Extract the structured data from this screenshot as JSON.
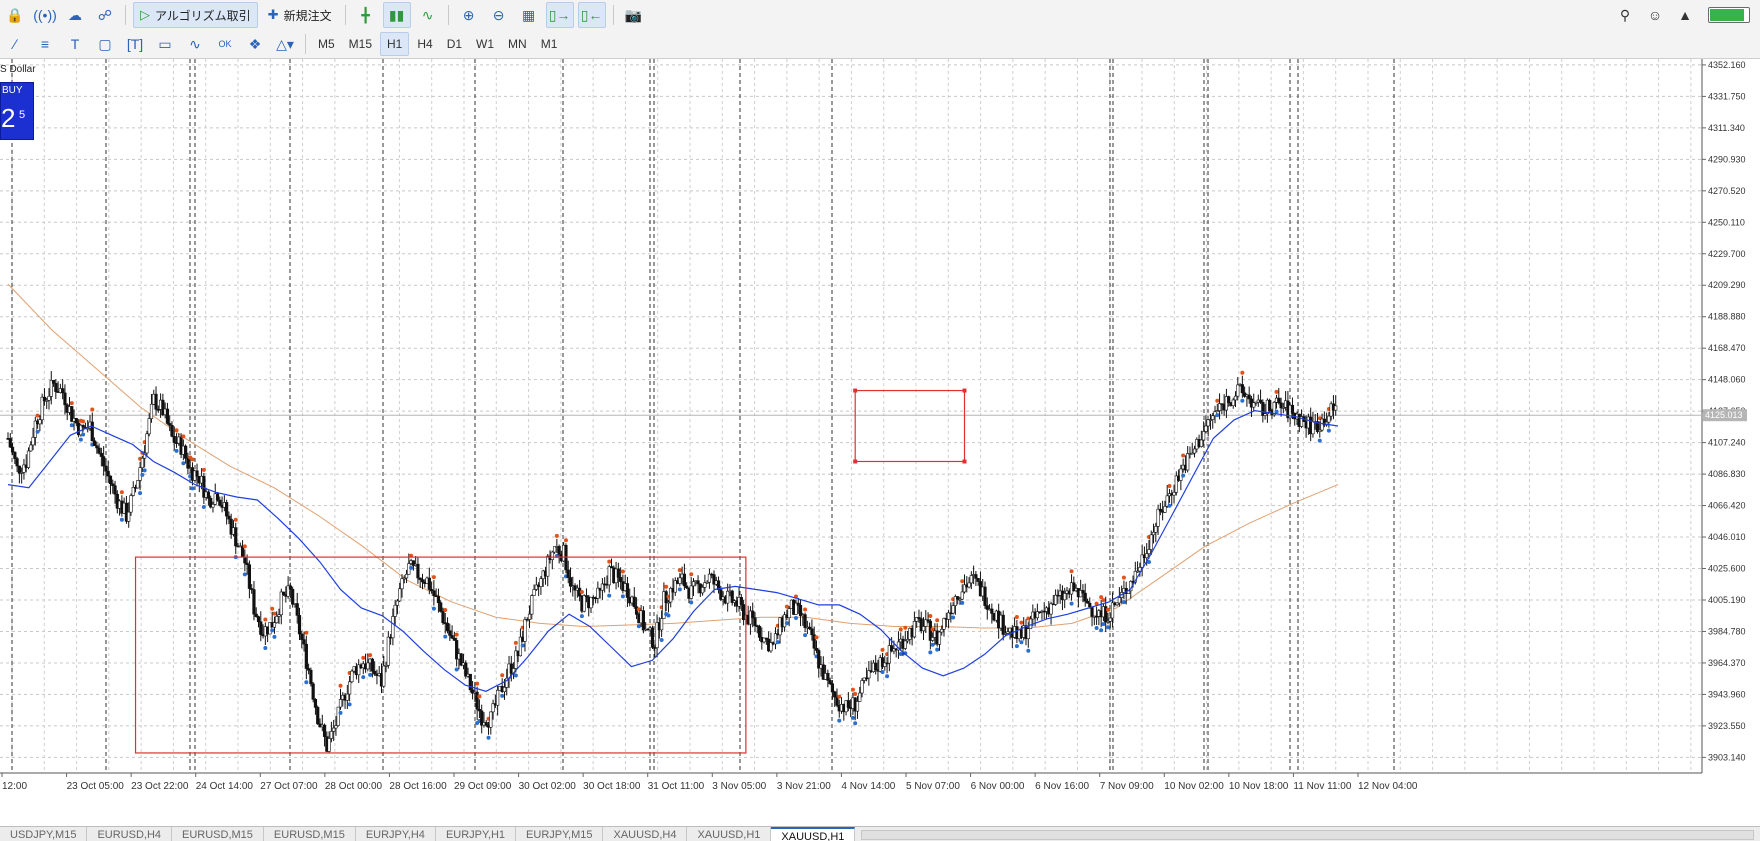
{
  "toolbar": {
    "algo_label": "アルゴリズム取引",
    "new_order_label": "新規注文",
    "icons_left": [
      "lock-icon",
      "signal-icon",
      "cloud-icon",
      "cloud-add-icon"
    ],
    "icons_chart": [
      "bar-chart-icon",
      "candlestick-icon",
      "line-chart-icon"
    ],
    "icons_zoom": [
      "zoom-in-icon",
      "zoom-out-icon",
      "grid-icon",
      "auto-scroll-icon",
      "chart-shift-icon"
    ],
    "screenshot_icon": "camera-icon",
    "right_icons": [
      "search-icon",
      "user-icon",
      "signal-strength-icon"
    ],
    "battery_level": 0.85
  },
  "drawing_toolbar": {
    "tools": [
      "line-tool-icon",
      "hlines-icon",
      "text-tool-icon",
      "rectangle-tool-icon",
      "text-label-icon",
      "price-label-icon",
      "indicator-icon",
      "ok-button-icon",
      "object-icon",
      "shapes-menu-icon"
    ],
    "timeframes": [
      "M5",
      "M15",
      "H1",
      "H4",
      "D1",
      "W1",
      "MN",
      "M1"
    ],
    "active_timeframe": "H1"
  },
  "trade_panel": {
    "symbol": "S Dollar",
    "buy_label": "BUY",
    "price_main": "2",
    "price_sup": "5"
  },
  "chart_data": {
    "type": "candlestick",
    "symbol": "XAUUSD",
    "timeframe": "H1",
    "y_ticks": [
      "4352.160",
      "4331.750",
      "4311.340",
      "4290.930",
      "4270.520",
      "4250.110",
      "4229.700",
      "4209.290",
      "4188.880",
      "4168.470",
      "4148.060",
      "4127.650",
      "4107.240",
      "4086.830",
      "4066.420",
      "4046.010",
      "4025.600",
      "4005.190",
      "3984.780",
      "3964.370",
      "3943.960",
      "3923.550",
      "3903.140"
    ],
    "ylim": [
      3893.0,
      4356.0
    ],
    "current_price": "4125.013",
    "x_labels": [
      "12:00",
      "23 Oct 05:00",
      "23 Oct 22:00",
      "24 Oct 14:00",
      "27 Oct 07:00",
      "28 Oct 00:00",
      "28 Oct 16:00",
      "29 Oct 09:00",
      "30 Oct 02:00",
      "30 Oct 18:00",
      "31 Oct 11:00",
      "3 Nov 05:00",
      "3 Nov 21:00",
      "4 Nov 14:00",
      "5 Nov 07:00",
      "6 Nov 00:00",
      "6 Nov 16:00",
      "7 Nov 09:00",
      "10 Nov 02:00",
      "10 Nov 18:00",
      "11 Nov 11:00",
      "12 Nov 04:00"
    ],
    "price_path": [
      4110,
      4090,
      4095,
      4120,
      4135,
      4145,
      4140,
      4125,
      4115,
      4118,
      4100,
      4085,
      4070,
      4060,
      4078,
      4105,
      4135,
      4128,
      4110,
      4105,
      4090,
      4085,
      4070,
      4075,
      4060,
      4045,
      4030,
      4000,
      3985,
      3990,
      4005,
      4010,
      3985,
      3960,
      3930,
      3910,
      3925,
      3945,
      3960,
      3965,
      3960,
      3952,
      3985,
      4010,
      4026,
      4022,
      4018,
      4005,
      3990,
      3975,
      3960,
      3945,
      3930,
      3928,
      3945,
      3960,
      3970,
      3995,
      4010,
      4025,
      4040,
      4035,
      4012,
      4003,
      4005,
      4008,
      4024,
      4018,
      4012,
      4000,
      3985,
      3978,
      4005,
      4014,
      4018,
      4010,
      4015,
      4020,
      4012,
      4006,
      4003,
      3995,
      3990,
      3980,
      3975,
      3992,
      4000,
      3995,
      3982,
      3965,
      3950,
      3940,
      3935,
      3938,
      3950,
      3960,
      3966,
      3972,
      3978,
      3985,
      3990,
      3986,
      3980,
      3995,
      4008,
      4015,
      4018,
      4010,
      4000,
      3990,
      3985,
      3980,
      3988,
      3995,
      4000,
      4005,
      4008,
      4012,
      4006,
      4000,
      3995,
      3998,
      4005,
      4015,
      4025,
      4040,
      4055,
      4068,
      4080,
      4092,
      4100,
      4112,
      4122,
      4130,
      4136,
      4140,
      4138,
      4130,
      4128,
      4132,
      4130,
      4126,
      4122,
      4118,
      4120,
      4126,
      4130
    ],
    "ma_fast_path": [
      4080,
      4078,
      4095,
      4112,
      4118,
      4112,
      4106,
      4095,
      4088,
      4080,
      4075,
      4072,
      4070,
      4058,
      4045,
      4030,
      4012,
      4000,
      3995,
      3985,
      3972,
      3960,
      3950,
      3946,
      3953,
      3968,
      3985,
      3996,
      3988,
      3975,
      3962,
      3966,
      3980,
      3998,
      4012,
      4014,
      4012,
      4010,
      4006,
      4002,
      4002,
      3996,
      3986,
      3972,
      3961,
      3956,
      3961,
      3970,
      3982,
      3988,
      3993,
      3996,
      4000,
      4004,
      4012,
      4035,
      4060,
      4085,
      4110,
      4122,
      4128,
      4126,
      4124,
      4120,
      4118
    ],
    "ma_slow_path": [
      4210,
      4180,
      4155,
      4130,
      4110,
      4092,
      4078,
      4060,
      4040,
      4018,
      4004,
      3994,
      3990,
      3988,
      3989,
      3990,
      3992,
      3994,
      3994,
      3990,
      3988,
      3988,
      3987,
      3987,
      3990,
      4000,
      4020,
      4040,
      4055,
      4068,
      4080
    ],
    "rectangles": [
      {
        "from_index": 14,
        "to_index": 81,
        "top": 4033.0,
        "bottom": 3906.0
      },
      {
        "from_index": 93,
        "to_index": 105,
        "top": 4141.0,
        "bottom": 4095.0
      }
    ]
  },
  "bottom_tabs": [
    "USDJPY,M15",
    "EURUSD,H4",
    "EURUSD,M15",
    "EURUSD,M15",
    "EURJPY,H4",
    "EURJPY,H1",
    "EURJPY,M15",
    "XAUUSD,H4",
    "XAUUSD,H1",
    "XAUUSD,H1"
  ],
  "active_tab_index": 9
}
